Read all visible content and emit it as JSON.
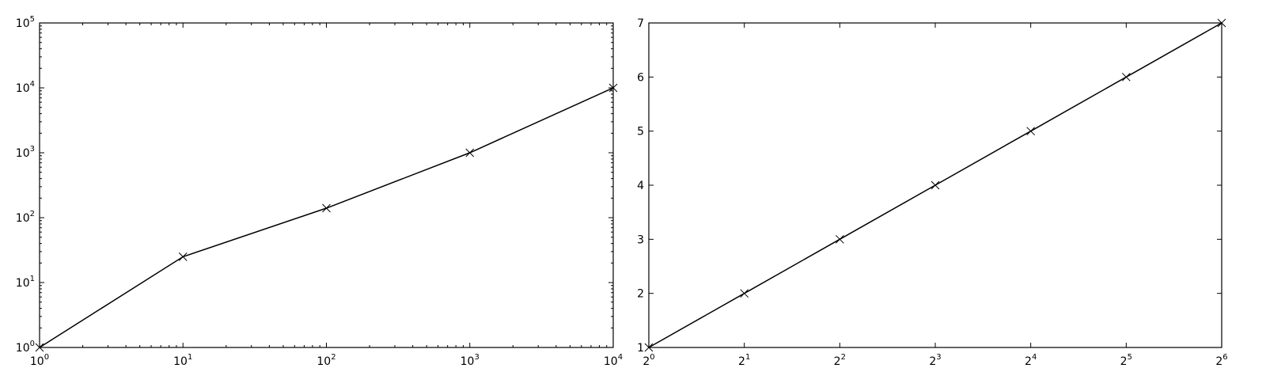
{
  "chart_data": [
    {
      "type": "line",
      "title": "",
      "xlabel": "",
      "ylabel": "",
      "xscale": "log",
      "yscale": "log",
      "xbase": 10,
      "ybase": 10,
      "xlim": [
        1,
        10000
      ],
      "ylim": [
        1,
        100000
      ],
      "grid": false,
      "marker": "x",
      "x": [
        1,
        10,
        100,
        1000,
        10000
      ],
      "y": [
        1,
        25,
        140,
        1000,
        10000
      ],
      "x_ticks": [
        {
          "base": "10",
          "exp": "0",
          "value": 1
        },
        {
          "base": "10",
          "exp": "1",
          "value": 10
        },
        {
          "base": "10",
          "exp": "2",
          "value": 100
        },
        {
          "base": "10",
          "exp": "3",
          "value": 1000
        },
        {
          "base": "10",
          "exp": "4",
          "value": 10000
        }
      ],
      "y_ticks": [
        {
          "base": "10",
          "exp": "0",
          "value": 1
        },
        {
          "base": "10",
          "exp": "1",
          "value": 10
        },
        {
          "base": "10",
          "exp": "2",
          "value": 100
        },
        {
          "base": "10",
          "exp": "3",
          "value": 1000
        },
        {
          "base": "10",
          "exp": "4",
          "value": 10000
        },
        {
          "base": "10",
          "exp": "5",
          "value": 100000
        }
      ]
    },
    {
      "type": "line",
      "title": "",
      "xlabel": "",
      "ylabel": "",
      "xscale": "log",
      "yscale": "linear",
      "xbase": 2,
      "xlim": [
        1,
        64
      ],
      "ylim": [
        1,
        7
      ],
      "grid": false,
      "marker": "x",
      "x": [
        1,
        2,
        4,
        8,
        16,
        32,
        64
      ],
      "y": [
        1,
        2,
        3,
        4,
        5,
        6,
        7
      ],
      "x_ticks": [
        {
          "base": "2",
          "exp": "0",
          "value": 1
        },
        {
          "base": "2",
          "exp": "1",
          "value": 2
        },
        {
          "base": "2",
          "exp": "2",
          "value": 4
        },
        {
          "base": "2",
          "exp": "3",
          "value": 8
        },
        {
          "base": "2",
          "exp": "4",
          "value": 16
        },
        {
          "base": "2",
          "exp": "5",
          "value": 32
        },
        {
          "base": "2",
          "exp": "6",
          "value": 64
        }
      ],
      "y_ticks": [
        {
          "label": "1",
          "value": 1
        },
        {
          "label": "2",
          "value": 2
        },
        {
          "label": "3",
          "value": 3
        },
        {
          "label": "4",
          "value": 4
        },
        {
          "label": "5",
          "value": 5
        },
        {
          "label": "6",
          "value": 6
        },
        {
          "label": "7",
          "value": 7
        }
      ]
    }
  ]
}
